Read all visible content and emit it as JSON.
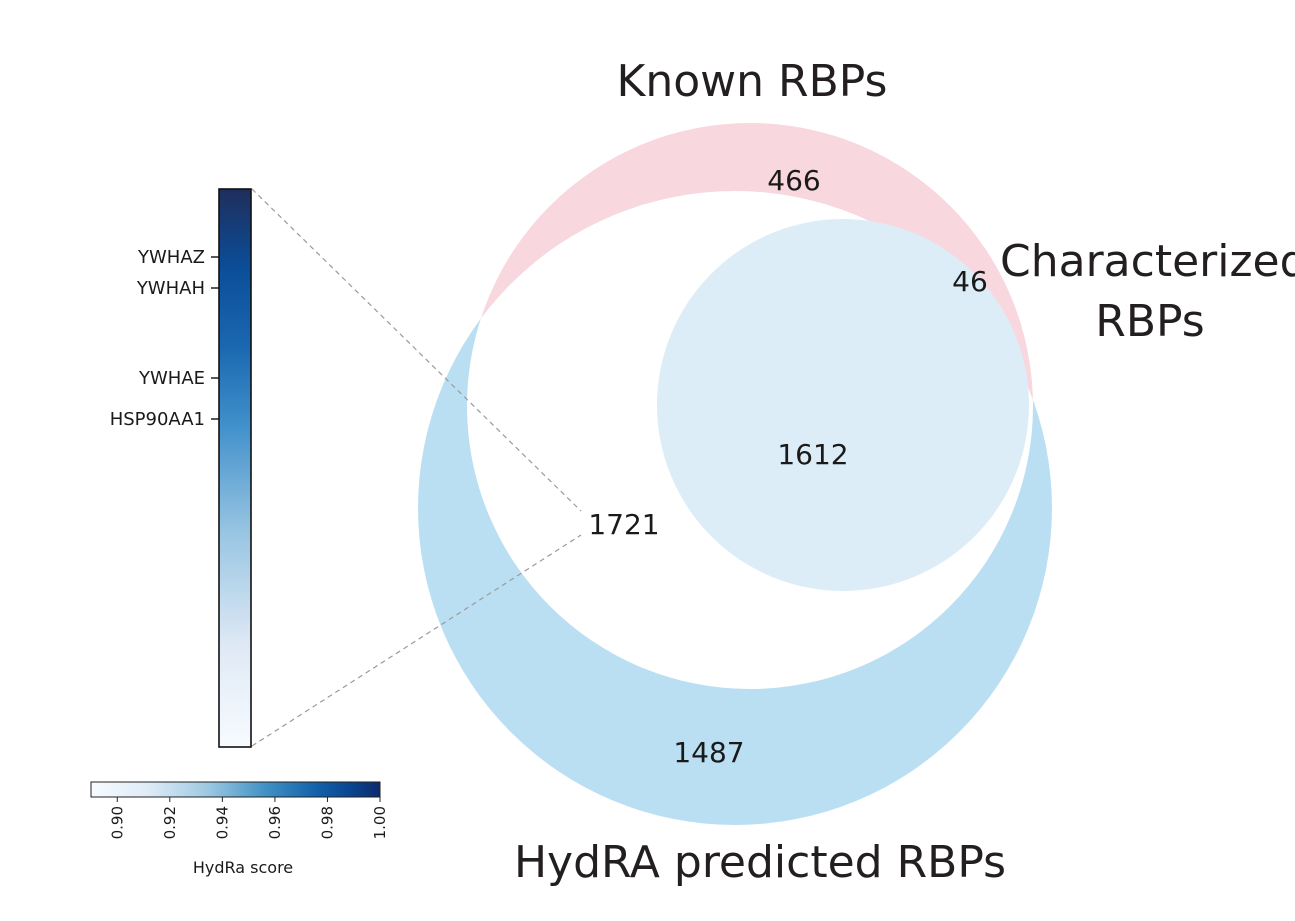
{
  "chart_data": {
    "type": "venn",
    "sets": [
      {
        "name": "Known RBPs",
        "color": "#f8d7de"
      },
      {
        "name": "Characterized RBPs",
        "color": "#dcedf7"
      },
      {
        "name": "HydRA predicted RBPs",
        "color": "#bbdff2"
      }
    ],
    "regions": {
      "known_only": 466,
      "known_and_characterized": 46,
      "all_three": 1612,
      "known_and_predicted": 1721,
      "predicted_only": 1487
    },
    "title_lines": {
      "known": "Known RBPs",
      "characterized_line1": "Characterized",
      "characterized_line2": "RBPs",
      "predicted": "HydRA predicted RBPs"
    },
    "heatmap_strip": {
      "genes": [
        "YWHAZ",
        "YWHAH",
        "YWHAE",
        "HSP90AA1"
      ],
      "score_range": [
        0.89,
        1.0
      ]
    },
    "colorbar": {
      "label": "HydRa score",
      "ticks": [
        "0.90",
        "0.92",
        "0.94",
        "0.96",
        "0.98",
        "1.00"
      ],
      "tick_values": [
        0.9,
        0.92,
        0.94,
        0.96,
        0.98,
        1.0
      ],
      "range": [
        0.89,
        1.0
      ],
      "colors": [
        "#f5f9ff",
        "#c6dbef",
        "#6baed6",
        "#2171b5",
        "#08519c",
        "#0a3a80",
        "#1b2d5c"
      ]
    }
  }
}
